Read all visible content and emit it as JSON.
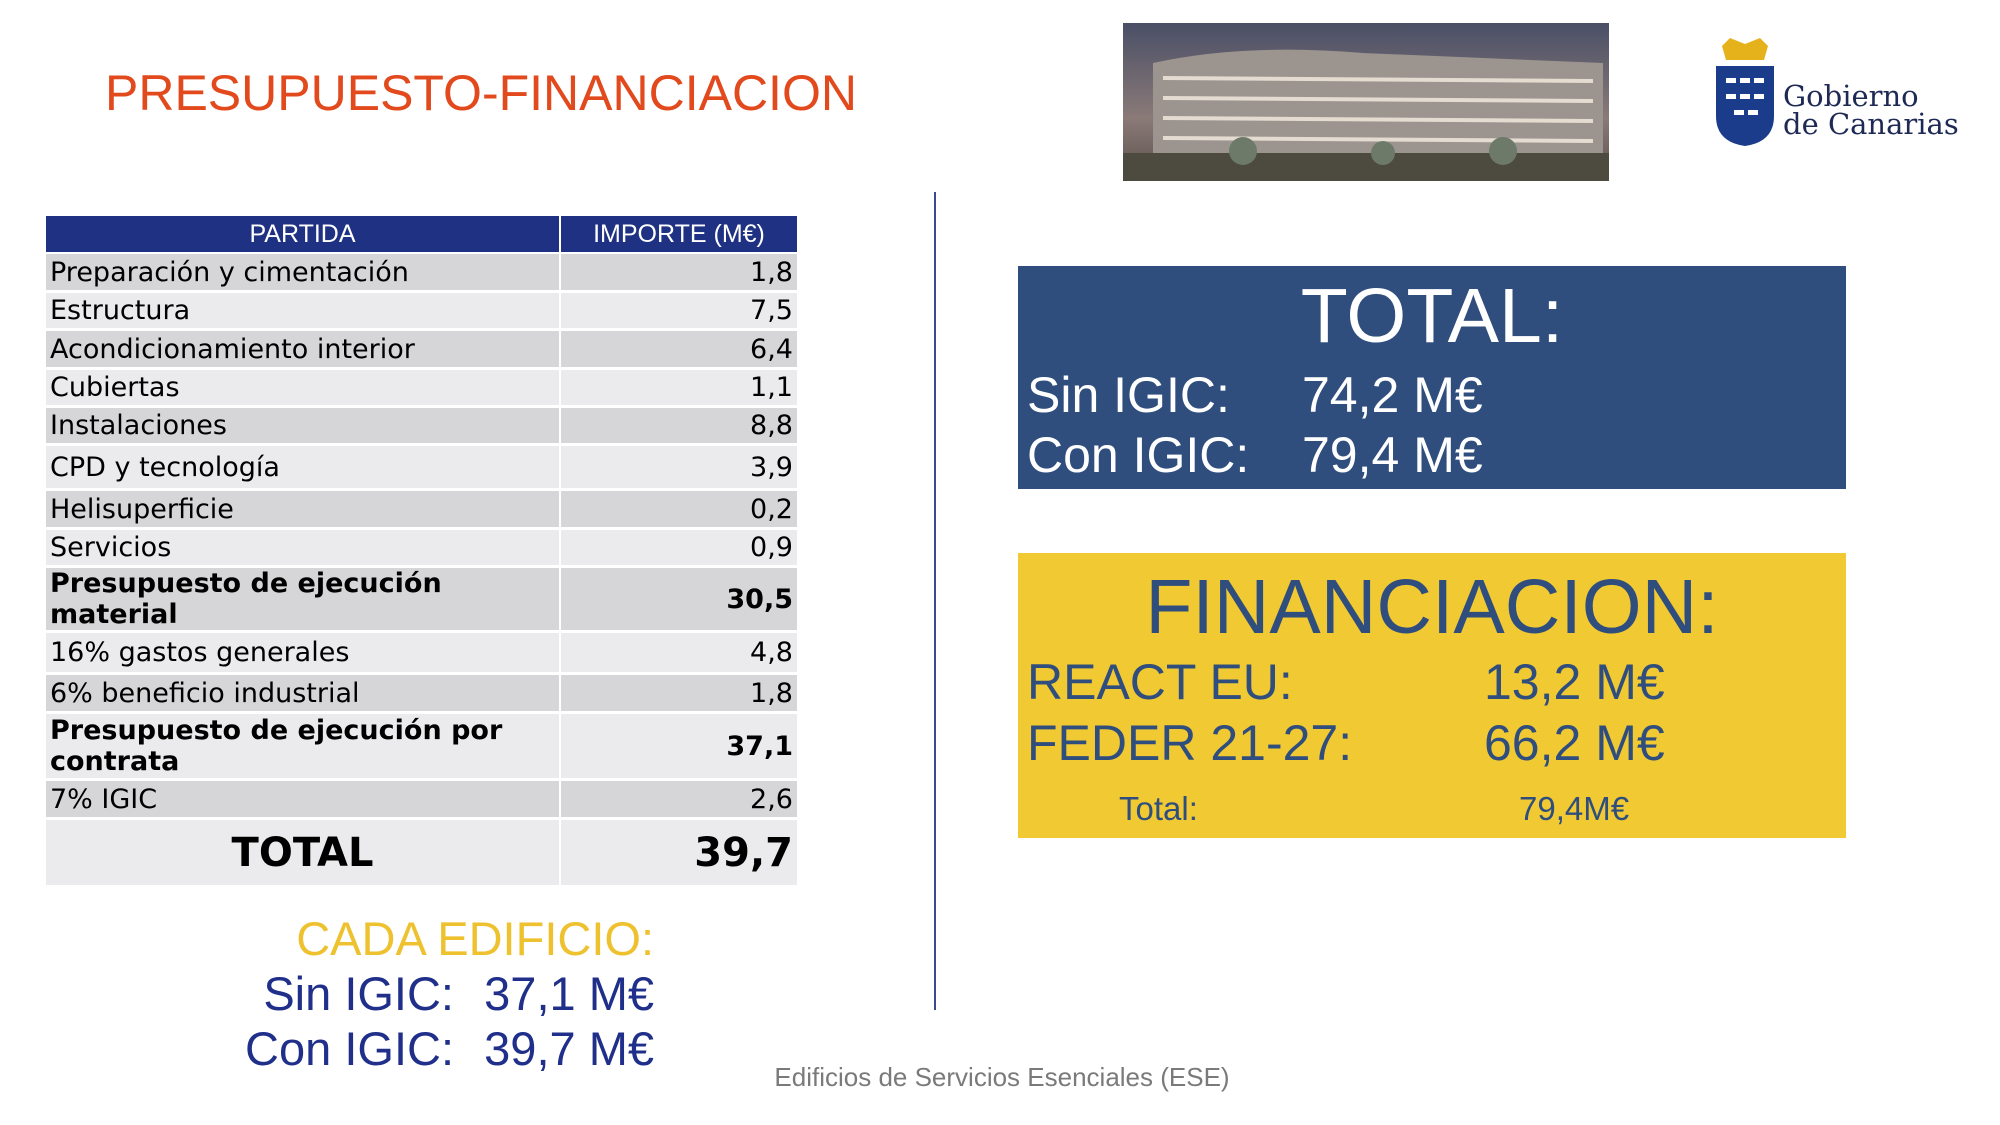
{
  "title": "PRESUPUESTO-FINANCIACION",
  "logo": {
    "line1": "Gobierno",
    "line2": "de Canarias"
  },
  "table": {
    "header": [
      "PARTIDA",
      "IMPORTE (M€)"
    ],
    "rows": [
      {
        "label": "Preparación y cimentación",
        "value": "1,8"
      },
      {
        "label": "Estructura",
        "value": "7,5"
      },
      {
        "label": "Acondicionamiento interior",
        "value": "6,4"
      },
      {
        "label": "Cubiertas",
        "value": "1,1"
      },
      {
        "label": "Instalaciones",
        "value": "8,8"
      },
      {
        "label": "CPD y tecnología",
        "value": "3,9"
      },
      {
        "label": "Helisuperficie",
        "value": "0,2"
      },
      {
        "label": "Servicios",
        "value": "0,9"
      },
      {
        "label": "Presupuesto de ejecución material",
        "value": "30,5",
        "bold": true
      },
      {
        "label": "16%  gastos generales",
        "value": "4,8"
      },
      {
        "label": "6% beneficio industrial",
        "value": "1,8"
      },
      {
        "label": "Presupuesto de ejecución por contrata",
        "value": "37,1",
        "bold": true
      },
      {
        "label": "7% IGIC",
        "value": "2,6"
      },
      {
        "label": "TOTAL",
        "value": "39,7",
        "bold": true,
        "large": true
      }
    ]
  },
  "cada_edificio": {
    "title": "CADA EDIFICIO:",
    "sin_label": "Sin IGIC:",
    "sin_value": "37,1 M€",
    "con_label": "Con IGIC:",
    "con_value": "39,7 M€"
  },
  "total_box": {
    "title": "TOTAL:",
    "sin_label": "Sin IGIC:",
    "sin_value": "74,2 M€",
    "con_label": "Con IGIC:",
    "con_value": "79,4 M€"
  },
  "financiacion_box": {
    "title": "FINANCIACION:",
    "react_label": "REACT EU:",
    "react_value": "13,2 M€",
    "feder_label": "FEDER 21-27:",
    "feder_value": "66,2 M€",
    "total_label": "Total:",
    "total_value": "79,4M€"
  },
  "footer": "Edificios de Servicios Esenciales (ESE)"
}
